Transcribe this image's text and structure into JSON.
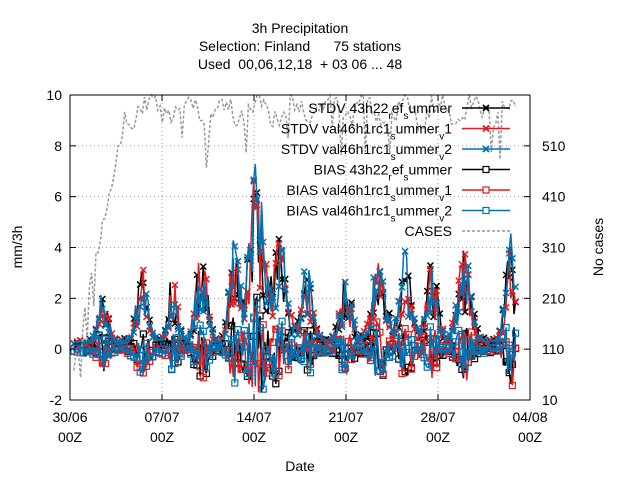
{
  "chart_data": {
    "type": "line",
    "title_lines": [
      "3h Precipitation",
      "Selection: Finland      75 stations",
      "Used  00,06,12,18  + 03 06 ... 48"
    ],
    "xlabel": "Date",
    "ylabel": "mm/3h",
    "y2label": "No cases",
    "ylim": [
      -2,
      10
    ],
    "y2lim": [
      10,
      610
    ],
    "xlim": [
      0,
      35
    ],
    "y_ticks": [
      "-2",
      "0",
      "2",
      "4",
      "6",
      "8",
      "10"
    ],
    "y2_ticks": [
      "10",
      "110",
      "210",
      "310",
      "410",
      "510"
    ],
    "x_ticks": [
      {
        "date": "30/06",
        "hour": "00Z"
      },
      {
        "date": "07/07",
        "hour": "00Z"
      },
      {
        "date": "14/07",
        "hour": "00Z"
      },
      {
        "date": "21/07",
        "hour": "00Z"
      },
      {
        "date": "28/07",
        "hour": "00Z"
      },
      {
        "date": "04/08",
        "hour": "00Z"
      }
    ],
    "grid": true,
    "legend_position": "top-right",
    "series": [
      {
        "name": "STDV 43h22_ref_summer",
        "color": "#000000",
        "marker": "x",
        "dash": "",
        "axis": "y1",
        "seed": 11,
        "kind": "stdv"
      },
      {
        "name": "STDV val46h1rc1_summer_v1",
        "color": "#e41a1c",
        "marker": "x",
        "dash": "",
        "axis": "y1",
        "seed": 23,
        "kind": "stdv"
      },
      {
        "name": "STDV val46h1rc1_summer_v2",
        "color": "#0072b2",
        "marker": "x",
        "dash": "",
        "axis": "y1",
        "seed": 37,
        "kind": "stdv"
      },
      {
        "name": "BIAS 43h22_ref_summer",
        "color": "#000000",
        "marker": "square",
        "dash": "",
        "axis": "y1",
        "seed": 41,
        "kind": "bias"
      },
      {
        "name": "BIAS val46h1rc1_summer_v1",
        "color": "#e41a1c",
        "marker": "square",
        "dash": "",
        "axis": "y1",
        "seed": 53,
        "kind": "bias"
      },
      {
        "name": "BIAS val46h1rc1_summer_v2",
        "color": "#0072b2",
        "marker": "square",
        "dash": "",
        "axis": "y1",
        "seed": 67,
        "kind": "bias"
      },
      {
        "name": "CASES",
        "color": "#999999",
        "marker": "none",
        "dash": "3,2",
        "axis": "y2",
        "seed": 79,
        "kind": "cases"
      }
    ],
    "legend_entries": [
      {
        "prefix": "STDV 43h22",
        "sub1": "r",
        "mid": "ef",
        "sub2": "s",
        "tail": "ummer"
      },
      {
        "prefix": "STDV val46h1rc1",
        "sub1": "s",
        "mid": "ummer",
        "sub2": "v",
        "tail": "1"
      },
      {
        "prefix": "STDV val46h1rc1",
        "sub1": "s",
        "mid": "ummer",
        "sub2": "v",
        "tail": "2"
      },
      {
        "prefix": "BIAS 43h22",
        "sub1": "r",
        "mid": "ef",
        "sub2": "s",
        "tail": "ummer"
      },
      {
        "prefix": "BIAS val46h1rc1",
        "sub1": "s",
        "mid": "ummer",
        "sub2": "v",
        "tail": "1"
      },
      {
        "prefix": "BIAS val46h1rc1",
        "sub1": "s",
        "mid": "ummer",
        "sub2": "v",
        "tail": "2"
      },
      {
        "prefix": "CASES",
        "sub1": "",
        "mid": "",
        "sub2": "",
        "tail": ""
      }
    ]
  }
}
